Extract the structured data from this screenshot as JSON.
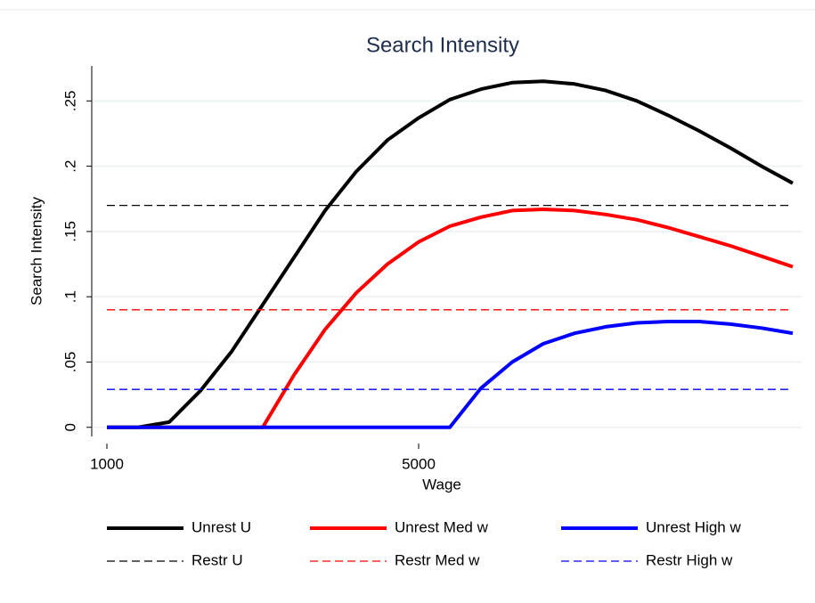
{
  "chart_data": {
    "type": "line",
    "title": "Search Intensity",
    "x_label": "Wage",
    "y_label": "Search Intensity",
    "x": [
      1000,
      1400,
      1800,
      2200,
      2600,
      3000,
      3400,
      3800,
      4200,
      4600,
      5000,
      5400,
      5800,
      6200,
      6600,
      7000,
      7400,
      7800,
      8200,
      8600,
      9000,
      9400,
      9800
    ],
    "series": [
      {
        "name": "Unrest U",
        "color": "#000000",
        "dash": false,
        "values": [
          0,
          0,
          0.004,
          0.028,
          0.058,
          0.094,
          0.13,
          0.166,
          0.196,
          0.22,
          0.237,
          0.251,
          0.259,
          0.264,
          0.265,
          0.263,
          0.258,
          0.25,
          0.239,
          0.227,
          0.214,
          0.2,
          0.187
        ]
      },
      {
        "name": "Unrest Med w",
        "color": "#ff0000",
        "dash": false,
        "values": [
          0,
          0,
          0,
          0,
          0,
          0,
          0.04,
          0.075,
          0.103,
          0.125,
          0.142,
          0.154,
          0.161,
          0.166,
          0.167,
          0.166,
          0.163,
          0.159,
          0.153,
          0.146,
          0.139,
          0.131,
          0.123
        ]
      },
      {
        "name": "Unrest High w",
        "color": "#0000ff",
        "dash": false,
        "values": [
          0,
          0,
          0,
          0,
          0,
          0,
          0,
          0,
          0,
          0,
          0,
          0,
          0.03,
          0.05,
          0.064,
          0.072,
          0.077,
          0.08,
          0.081,
          0.081,
          0.079,
          0.076,
          0.072
        ]
      },
      {
        "name": "Restr U",
        "color": "#000000",
        "dash": true,
        "values": [
          0.17,
          0.17,
          0.17,
          0.17,
          0.17,
          0.17,
          0.17,
          0.17,
          0.17,
          0.17,
          0.17,
          0.17,
          0.17,
          0.17,
          0.17,
          0.17,
          0.17,
          0.17,
          0.17,
          0.17,
          0.17,
          0.17,
          0.17
        ]
      },
      {
        "name": "Restr Med w",
        "color": "#ff0000",
        "dash": true,
        "values": [
          0.09,
          0.09,
          0.09,
          0.09,
          0.09,
          0.09,
          0.09,
          0.09,
          0.09,
          0.09,
          0.09,
          0.09,
          0.09,
          0.09,
          0.09,
          0.09,
          0.09,
          0.09,
          0.09,
          0.09,
          0.09,
          0.09,
          0.09
        ]
      },
      {
        "name": "Restr High w",
        "color": "#0000ff",
        "dash": true,
        "values": [
          0.029,
          0.029,
          0.029,
          0.029,
          0.029,
          0.029,
          0.029,
          0.029,
          0.029,
          0.029,
          0.029,
          0.029,
          0.029,
          0.029,
          0.029,
          0.029,
          0.029,
          0.029,
          0.029,
          0.029,
          0.029,
          0.029,
          0.029
        ]
      }
    ],
    "xlim": [
      1000,
      9800
    ],
    "xticks": [
      1000,
      5000
    ],
    "ylim": [
      -0.007,
      0.27
    ],
    "yticks": [
      0,
      {
        "value": 0.05,
        "label": ".05"
      },
      {
        "value": 0.1,
        "label": ".1"
      },
      {
        "value": 0.15,
        "label": ".15"
      },
      {
        "value": 0.2,
        "label": ".2"
      },
      {
        "value": 0.25,
        "label": ".25"
      }
    ],
    "grid": true
  }
}
